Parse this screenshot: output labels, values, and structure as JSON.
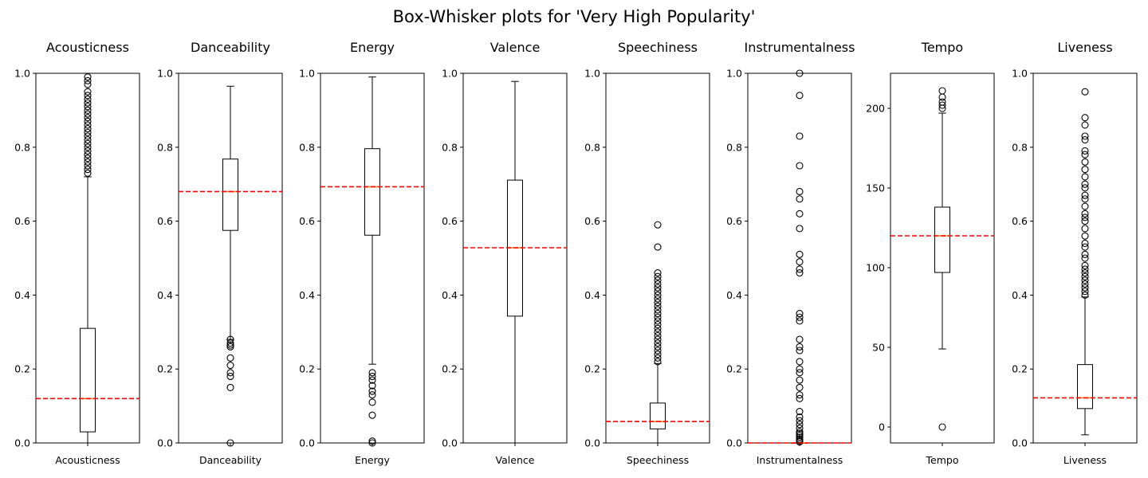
{
  "chart_data": {
    "type": "box",
    "title": "Box-Whisker plots for 'Very High Popularity'",
    "reference_line": {
      "style": "dashed",
      "color": "#ff0000"
    },
    "colors": {
      "box": "#000000",
      "median": "#ff7f0e",
      "reference": "#ff0000"
    },
    "panels": [
      {
        "title": "Acousticness",
        "xlabel": "Acousticness",
        "ylim": [
          0,
          1
        ],
        "yticks": [
          "0.0",
          "0.2",
          "0.4",
          "0.6",
          "0.8",
          "1.0"
        ],
        "ytick_values": [
          0,
          0.2,
          0.4,
          0.6,
          0.8,
          1.0
        ],
        "whisker_low": 0.0,
        "q1": 0.03,
        "median": 0.12,
        "q3": 0.31,
        "whisker_high": 0.72,
        "reference": 0.12,
        "outliers": [
          0.73,
          0.74,
          0.75,
          0.76,
          0.77,
          0.78,
          0.79,
          0.8,
          0.81,
          0.82,
          0.83,
          0.84,
          0.85,
          0.86,
          0.87,
          0.88,
          0.89,
          0.9,
          0.91,
          0.92,
          0.93,
          0.94,
          0.95,
          0.97,
          0.98,
          0.99
        ]
      },
      {
        "title": "Danceability",
        "xlabel": "Danceability",
        "ylim": [
          0,
          1
        ],
        "yticks": [
          "0.0",
          "0.2",
          "0.4",
          "0.6",
          "0.8",
          "1.0"
        ],
        "ytick_values": [
          0,
          0.2,
          0.4,
          0.6,
          0.8,
          1.0
        ],
        "whisker_low": 0.28,
        "q1": 0.575,
        "median": 0.68,
        "q3": 0.768,
        "whisker_high": 0.965,
        "reference": 0.68,
        "outliers": [
          0.0,
          0.15,
          0.18,
          0.19,
          0.21,
          0.23,
          0.26,
          0.265,
          0.27,
          0.28
        ]
      },
      {
        "title": "Energy",
        "xlabel": "Energy",
        "ylim": [
          0,
          1
        ],
        "yticks": [
          "0.0",
          "0.2",
          "0.4",
          "0.6",
          "0.8",
          "1.0"
        ],
        "ytick_values": [
          0,
          0.2,
          0.4,
          0.6,
          0.8,
          1.0
        ],
        "whisker_low": 0.213,
        "q1": 0.562,
        "median": 0.693,
        "q3": 0.796,
        "whisker_high": 0.99,
        "reference": 0.693,
        "outliers": [
          0.0,
          0.005,
          0.075,
          0.11,
          0.13,
          0.14,
          0.155,
          0.17,
          0.18,
          0.19
        ]
      },
      {
        "title": "Valence",
        "xlabel": "Valence",
        "ylim": [
          0,
          1
        ],
        "yticks": [
          "0.0",
          "0.2",
          "0.4",
          "0.6",
          "0.8",
          "1.0"
        ],
        "ytick_values": [
          0,
          0.2,
          0.4,
          0.6,
          0.8,
          1.0
        ],
        "whisker_low": 0.0,
        "q1": 0.343,
        "median": 0.528,
        "q3": 0.711,
        "whisker_high": 0.978,
        "reference": 0.528,
        "outliers": []
      },
      {
        "title": "Speechiness",
        "xlabel": "Speechiness",
        "ylim": [
          0,
          1
        ],
        "yticks": [
          "0.0",
          "0.2",
          "0.4",
          "0.6",
          "0.8",
          "1.0"
        ],
        "ytick_values": [
          0,
          0.2,
          0.4,
          0.6,
          0.8,
          1.0
        ],
        "whisker_low": 0.0,
        "q1": 0.038,
        "median": 0.058,
        "q3": 0.108,
        "whisker_high": 0.215,
        "reference": 0.058,
        "outliers": [
          0.22,
          0.23,
          0.24,
          0.25,
          0.26,
          0.27,
          0.28,
          0.29,
          0.3,
          0.31,
          0.32,
          0.33,
          0.34,
          0.35,
          0.36,
          0.37,
          0.38,
          0.39,
          0.4,
          0.41,
          0.42,
          0.43,
          0.44,
          0.45,
          0.46,
          0.53,
          0.59
        ]
      },
      {
        "title": "Instrumentalness",
        "xlabel": "Instrumentalness",
        "ylim": [
          0,
          1
        ],
        "yticks": [
          "0.0",
          "0.2",
          "0.4",
          "0.6",
          "0.8",
          "1.0"
        ],
        "ytick_values": [
          0,
          0.2,
          0.4,
          0.6,
          0.8,
          1.0
        ],
        "whisker_low": 0.0,
        "q1": 0.0,
        "median": 0.0,
        "q3": 0.0,
        "whisker_high": 0.0,
        "reference": 0.0,
        "outliers": [
          0.003,
          0.006,
          0.01,
          0.015,
          0.02,
          0.025,
          0.03,
          0.04,
          0.05,
          0.06,
          0.07,
          0.085,
          0.12,
          0.13,
          0.15,
          0.17,
          0.19,
          0.2,
          0.22,
          0.25,
          0.26,
          0.28,
          0.33,
          0.34,
          0.35,
          0.46,
          0.47,
          0.49,
          0.51,
          0.58,
          0.62,
          0.66,
          0.68,
          0.75,
          0.83,
          0.94,
          1.0
        ]
      },
      {
        "title": "Tempo",
        "xlabel": "Tempo",
        "ylim": [
          -10,
          222
        ],
        "yticks": [
          "0",
          "50",
          "100",
          "150",
          "200"
        ],
        "ytick_values": [
          0,
          50,
          100,
          150,
          200
        ],
        "whisker_low": 49,
        "q1": 97,
        "median": 120,
        "q3": 138,
        "whisker_high": 197,
        "reference": 120,
        "outliers": [
          0,
          200,
          202,
          204,
          207,
          211
        ]
      },
      {
        "title": "Liveness",
        "xlabel": "Liveness",
        "ylim": [
          0,
          1
        ],
        "yticks": [
          "0.0",
          "0.2",
          "0.4",
          "0.6",
          "0.8",
          "1.0"
        ],
        "ytick_values": [
          0,
          0.2,
          0.4,
          0.6,
          0.8,
          1.0
        ],
        "whisker_low": 0.022,
        "q1": 0.093,
        "median": 0.122,
        "q3": 0.212,
        "whisker_high": 0.395,
        "reference": 0.122,
        "outliers": [
          0.4,
          0.41,
          0.42,
          0.43,
          0.44,
          0.45,
          0.46,
          0.47,
          0.48,
          0.5,
          0.51,
          0.53,
          0.54,
          0.56,
          0.58,
          0.6,
          0.61,
          0.62,
          0.64,
          0.66,
          0.67,
          0.69,
          0.7,
          0.72,
          0.74,
          0.76,
          0.78,
          0.79,
          0.82,
          0.83,
          0.86,
          0.88,
          0.95
        ]
      }
    ]
  }
}
